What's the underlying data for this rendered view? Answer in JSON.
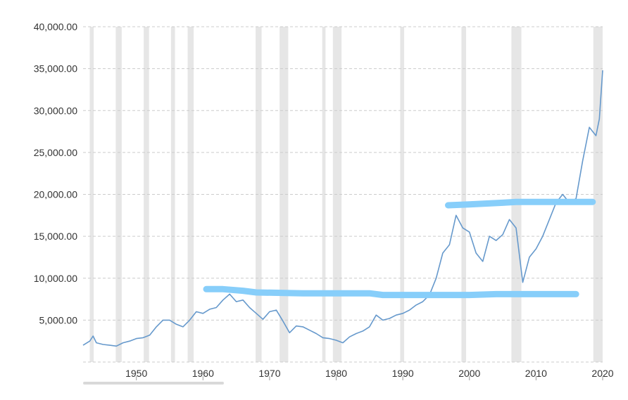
{
  "chart_data": {
    "type": "line",
    "title": "",
    "xlabel": "",
    "ylabel": "",
    "xlim": [
      1942,
      2020
    ],
    "ylim": [
      0,
      40000
    ],
    "y_ticks": [
      {
        "value": 40000,
        "label": "40,000.00"
      },
      {
        "value": 35000,
        "label": "35,000.00"
      },
      {
        "value": 30000,
        "label": "30,000.00"
      },
      {
        "value": 25000,
        "label": "25,000.00"
      },
      {
        "value": 20000,
        "label": "20,000.00"
      },
      {
        "value": 15000,
        "label": "15,000.00"
      },
      {
        "value": 10000,
        "label": "10,000.00"
      },
      {
        "value": 5000,
        "label": "5,000.00"
      }
    ],
    "x_ticks": [
      {
        "value": 1950,
        "label": "1950"
      },
      {
        "value": 1960,
        "label": "1960"
      },
      {
        "value": 1970,
        "label": "1970"
      },
      {
        "value": 1980,
        "label": "1980"
      },
      {
        "value": 1990,
        "label": "1990"
      },
      {
        "value": 2000,
        "label": "2000"
      },
      {
        "value": 2010,
        "label": "2010"
      },
      {
        "value": 2020,
        "label": "2020"
      }
    ],
    "grid": true,
    "recession_bands": [
      [
        1943.0,
        1943.6
      ],
      [
        1946.9,
        1947.8
      ],
      [
        1951.1,
        1951.9
      ],
      [
        1955.2,
        1955.8
      ],
      [
        1957.7,
        1958.6
      ],
      [
        1967.9,
        1968.8
      ],
      [
        1971.5,
        1972.8
      ],
      [
        1977.9,
        1978.4
      ],
      [
        1979.5,
        1980.8
      ],
      [
        1989.6,
        1990.2
      ],
      [
        1998.8,
        1999.5
      ],
      [
        2006.3,
        2007.8
      ],
      [
        2018.6,
        2020.0
      ]
    ],
    "series": [
      {
        "color": "#6699cc",
        "x": [
          1942.0,
          1943.0,
          1943.5,
          1944.0,
          1945.0,
          1946.0,
          1947.0,
          1948.0,
          1949.0,
          1950.0,
          1951.0,
          1952.0,
          1953.0,
          1954.0,
          1955.0,
          1956.0,
          1957.0,
          1958.0,
          1959.0,
          1960.0,
          1961.0,
          1962.0,
          1963.0,
          1964.0,
          1965.0,
          1966.0,
          1967.0,
          1968.0,
          1969.0,
          1970.0,
          1971.0,
          1972.0,
          1973.0,
          1974.0,
          1975.0,
          1976.0,
          1977.0,
          1978.0,
          1979.0,
          1980.0,
          1981.0,
          1982.0,
          1983.0,
          1984.0,
          1985.0,
          1986.0,
          1987.0,
          1988.0,
          1989.0,
          1990.0,
          1991.0,
          1992.0,
          1993.0,
          1994.0,
          1995.0,
          1996.0,
          1997.0,
          1998.0,
          1999.0,
          2000.0,
          2001.0,
          2002.0,
          2003.0,
          2004.0,
          2005.0,
          2006.0,
          2007.0,
          2008.0,
          2009.0,
          2010.0,
          2011.0,
          2012.0,
          2013.0,
          2014.0,
          2015.0,
          2016.0,
          2017.0,
          2018.0,
          2019.0,
          2019.5,
          2020.0
        ],
        "y": [
          2000,
          2500,
          3100,
          2300,
          2100,
          2000,
          1900,
          2300,
          2500,
          2800,
          2900,
          3200,
          4200,
          5000,
          5000,
          4500,
          4200,
          5000,
          6000,
          5800,
          6300,
          6500,
          7400,
          8100,
          7200,
          7400,
          6500,
          5800,
          5100,
          6000,
          6200,
          4900,
          3500,
          4300,
          4200,
          3800,
          3400,
          2900,
          2800,
          2600,
          2300,
          3000,
          3400,
          3700,
          4200,
          5600,
          5000,
          5200,
          5600,
          5800,
          6200,
          6800,
          7200,
          8000,
          10000,
          13000,
          14000,
          17500,
          16000,
          15500,
          13000,
          12000,
          15000,
          14500,
          15200,
          17000,
          16000,
          9500,
          12500,
          13500,
          15000,
          17000,
          19000,
          20000,
          19000,
          19500,
          24000,
          28000,
          27000,
          29000,
          34800
        ]
      }
    ]
  },
  "annotations": {
    "color": "#87cefa",
    "lines": [
      {
        "x": [
          1960.5,
          1963.0,
          1966.0,
          1968.0,
          1975.0,
          1985.0,
          1987.0,
          1995.0,
          2000.0,
          2004.0,
          2016.0
        ],
        "y": [
          8700,
          8700,
          8500,
          8300,
          8200,
          8200,
          8000,
          8000,
          8000,
          8100,
          8100
        ]
      },
      {
        "x": [
          1996.8,
          2000.0,
          2005.0,
          2007.0,
          2018.5
        ],
        "y": [
          18700,
          18800,
          19000,
          19100,
          19100
        ]
      }
    ]
  }
}
